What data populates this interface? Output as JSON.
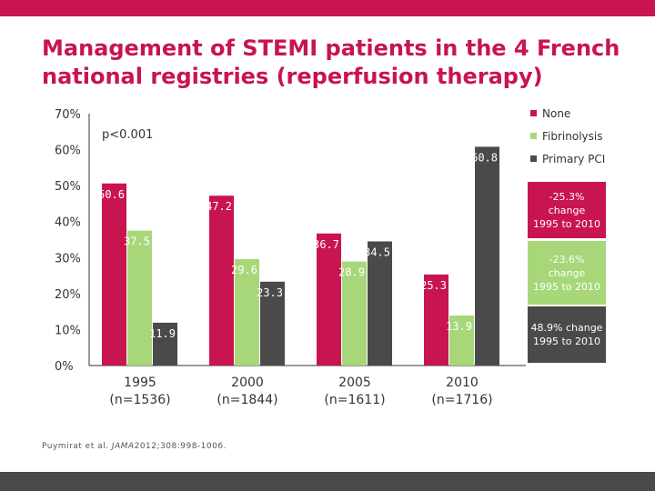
{
  "header": {
    "title_line1": "Management of STEMI patients in the 4 French",
    "title_line2": "national registries (reperfusion therapy)"
  },
  "chart_data": {
    "type": "bar",
    "categories": [
      {
        "year": "1995",
        "n": "(n=1536)"
      },
      {
        "year": "2000",
        "n": "(n=1844)"
      },
      {
        "year": "2005",
        "n": "(n=1611)"
      },
      {
        "year": "2010",
        "n": "(n=1716)"
      }
    ],
    "series": [
      {
        "name": "None",
        "color": "#c8144f",
        "values": [
          50.6,
          47.2,
          36.7,
          25.3
        ],
        "labels": [
          "50.6",
          "47.2",
          "36.7",
          "25.3"
        ]
      },
      {
        "name": "Fibrinolysis",
        "color": "#a8d77a",
        "values": [
          37.5,
          29.6,
          28.9,
          13.9
        ],
        "labels": [
          "37.5",
          "29.6",
          "28.9",
          "13.9"
        ]
      },
      {
        "name": "Primary PCI",
        "color": "#4a4a4a",
        "values": [
          11.9,
          23.3,
          34.5,
          60.8
        ],
        "labels": [
          "11.9",
          "23.3",
          "34.5",
          "60.8"
        ]
      }
    ],
    "yticks": [
      "0%",
      "10%",
      "20%",
      "30%",
      "40%",
      "50%",
      "60%",
      "70%"
    ],
    "ylim": [
      0,
      70
    ],
    "annotation": "p<0.001",
    "legend_position": "right",
    "grid": false
  },
  "change_notes": [
    {
      "text_line1": "-25.3% change",
      "text_line2": "1995 to 2010",
      "bg": "#c8144f",
      "fg": "#ffffff"
    },
    {
      "text_line1": "-23.6% change",
      "text_line2": "1995 to 2010",
      "bg": "#a8d77a",
      "fg": "#ffffff"
    },
    {
      "text_line1": "48.9% change",
      "text_line2": "1995 to 2010",
      "bg": "#4a4a4a",
      "fg": "#ffffff"
    }
  ],
  "footer": {
    "source_authors": "Puymirat et al.",
    "source_journal": "JAMA",
    "source_ref": "2012;308:998-1006."
  }
}
